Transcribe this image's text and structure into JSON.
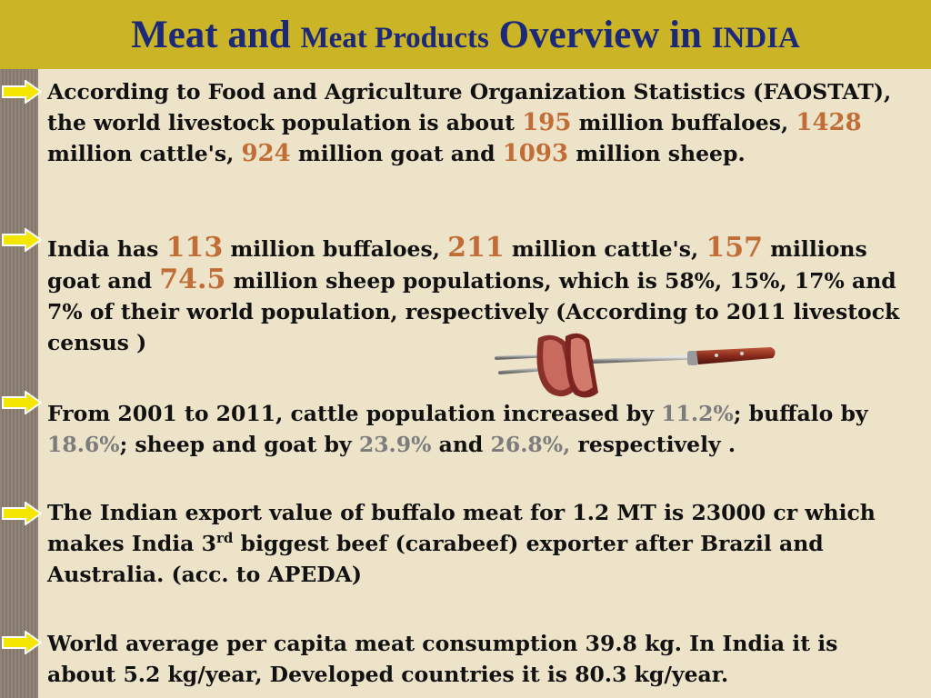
{
  "title": {
    "part1": "Meat and ",
    "part2": "Meat Products",
    "part3": " Overview in ",
    "part4": "INDIA"
  },
  "bullets": [
    {
      "t1": "According to Food and Agriculture Organization Statistics (FAOSTAT), the world livestock population is about ",
      "v1": "195",
      "t2": " million buffaloes, ",
      "v2": "1428",
      "t3": " million cattle's, ",
      "v3": "924",
      "t4": " million goat and ",
      "v4": "1093",
      "t5": " million sheep."
    },
    {
      "t1": "India has ",
      "v1": "113",
      "t2": " million buffaloes, ",
      "v2": "211",
      "t3": " million cattle's, ",
      "v3": "157",
      "t4": " millions goat and ",
      "v4": "74.5",
      "t5": " million sheep populations, which is 58%, 15%, 17% and 7% of their world population, respectively (According  to 2011 livestock census )"
    },
    {
      "t1": "From 2001 to 2011, cattle population increased by ",
      "v1": "11.2%",
      "t2": "; buffalo by ",
      "v2": "18.6%",
      "t3": "; sheep and goat by ",
      "v3": "23.9%",
      "t4": " and ",
      "v4": "26.8%,",
      "t5": " respectively ."
    },
    {
      "t1": "The Indian export value of buffalo meat for  1.2  MT is 23000 cr which makes India 3",
      "sup": "rd",
      "t2": " biggest beef (carabeef) exporter after Brazil and Australia. (acc. to APEDA)"
    },
    {
      "t1": "World average  per capita meat consumption 39.8 kg. In India it is about 5.2 kg/year, Developed countries it is  80.3 kg/year."
    }
  ],
  "icons": {
    "bullet": "arrow-right-icon",
    "illustration": "meat-on-fork-icon"
  },
  "colors": {
    "title_bar": "#cbb526",
    "title_text": "#1c2878",
    "highlight_orange": "#c06d36",
    "highlight_gray": "#7c7c7c",
    "arrow_fill": "#f3e600"
  }
}
